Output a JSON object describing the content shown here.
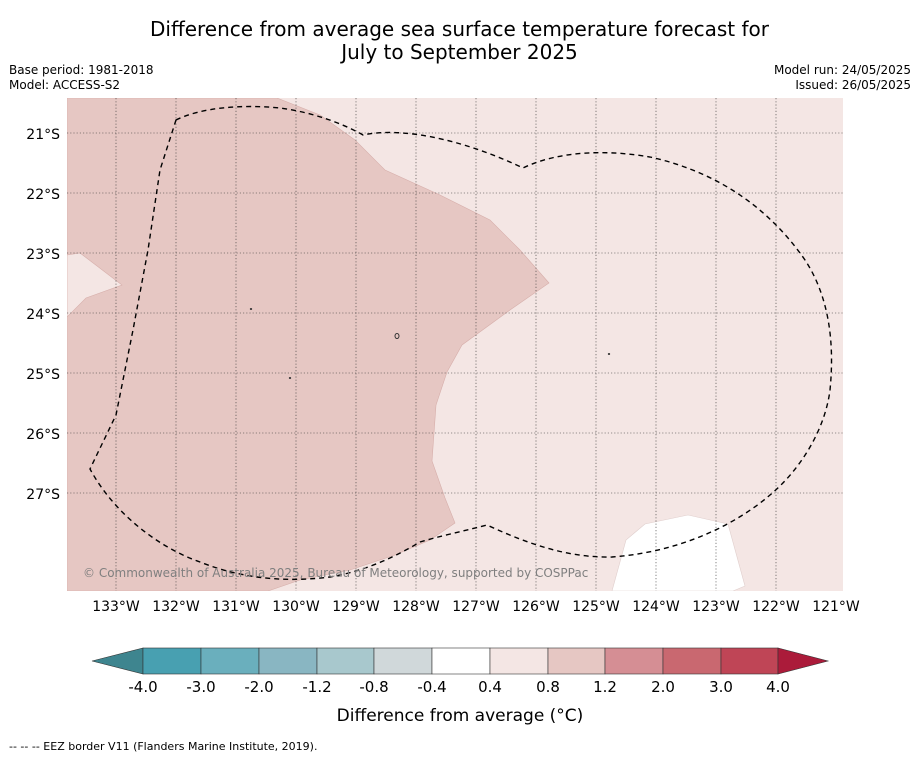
{
  "title_line1": "Difference from average sea surface temperature forecast for",
  "title_line2": "July to September 2025",
  "meta_left": [
    "Base period: 1981-2018",
    "Model: ACCESS-S2"
  ],
  "meta_right": [
    "Model run: 24/05/2025",
    "Issued: 26/05/2025"
  ],
  "map": {
    "lat_labels": [
      "21°S",
      "22°S",
      "23°S",
      "24°S",
      "25°S",
      "26°S",
      "27°S"
    ],
    "lon_labels": [
      "133°W",
      "132°W",
      "131°W",
      "130°W",
      "129°W",
      "128°W",
      "127°W",
      "126°W",
      "125°W",
      "124°W",
      "123°W",
      "122°W",
      "121°W"
    ],
    "copyright": "© Commonwealth of Australia 2025, Bureau of Meteorology, supported by COSPPac",
    "eez_border": "dashed"
  },
  "legend": {
    "title": "Difference from average (°C)",
    "tick_labels": [
      "-4.0",
      "-3.0",
      "-2.0",
      "-1.2",
      "-0.8",
      "-0.4",
      "0.4",
      "0.8",
      "1.2",
      "2.0",
      "3.0",
      "4.0"
    ],
    "colors": [
      "#3e858f",
      "#48a0b1",
      "#6aafbd",
      "#89b6c2",
      "#a8c8cd",
      "#d0d8da",
      "#ffffff",
      "#f4e6e4",
      "#e6c7c3",
      "#d58e94",
      "#c96870",
      "#bf4556",
      "#ab1b3a"
    ]
  },
  "footnote": "--  --  -- EEZ border V11 (Flanders Marine Institute, 2019)."
}
